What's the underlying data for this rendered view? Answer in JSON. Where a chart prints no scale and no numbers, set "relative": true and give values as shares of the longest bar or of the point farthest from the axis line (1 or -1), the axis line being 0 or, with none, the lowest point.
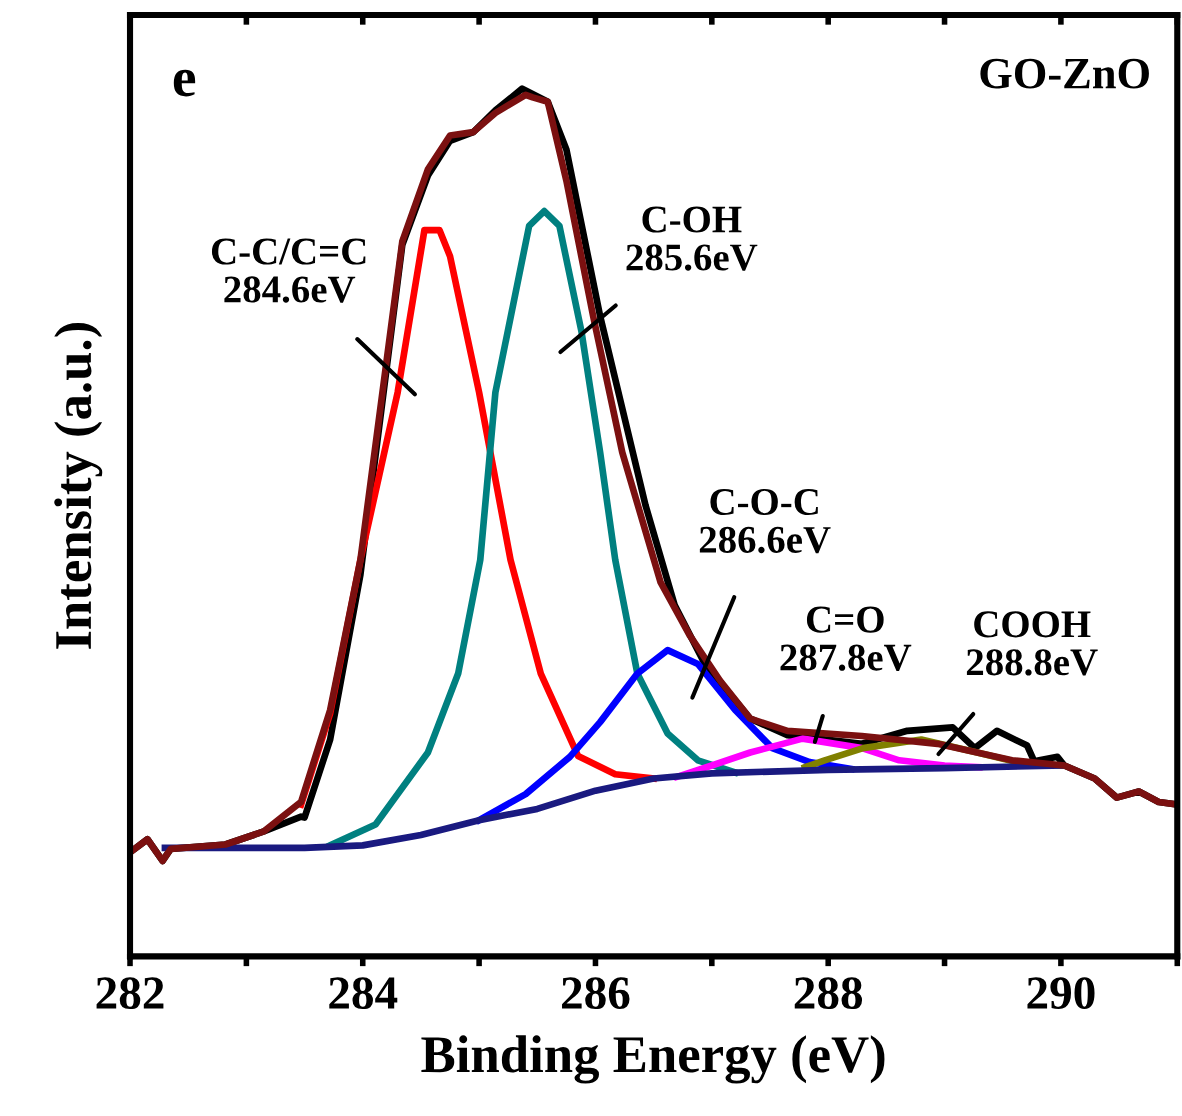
{
  "chart_data": {
    "type": "line",
    "relative": true,
    "xlabel": "Binding Energy (eV)",
    "ylabel": "Intensity (a.u.)",
    "xlim": [
      282,
      291
    ],
    "xticks": [
      282,
      {
        "value": 283,
        "label": null
      },
      284,
      {
        "value": 285,
        "label": null
      },
      286,
      {
        "value": 287,
        "label": null
      },
      288,
      {
        "value": 289,
        "label": null
      },
      290,
      {
        "value": 291,
        "label": null
      }
    ],
    "tick_labels": "x",
    "grid": false,
    "marker": "none",
    "line_style": "solid",
    "series": [
      {
        "color": "#000000",
        "x": [
          282.0,
          282.15,
          282.28,
          282.35,
          282.82,
          283.15,
          283.47,
          283.5,
          283.72,
          283.98,
          284.34,
          284.56,
          284.75,
          284.95,
          285.14,
          285.37,
          285.59,
          285.75,
          286.04,
          286.43,
          286.68,
          286.94,
          287.33,
          287.65,
          288.29,
          288.68,
          289.07,
          289.26,
          289.45,
          289.71,
          289.77,
          289.97,
          290.03,
          290.29,
          290.48,
          290.67,
          290.84,
          291.0
        ],
        "values": [
          0.12,
          0.135,
          0.11,
          0.124,
          0.129,
          0.144,
          0.161,
          0.16,
          0.25,
          0.44,
          0.82,
          0.9,
          0.94,
          0.95,
          0.975,
          1.0,
          0.985,
          0.93,
          0.738,
          0.52,
          0.405,
          0.337,
          0.274,
          0.255,
          0.245,
          0.26,
          0.264,
          0.24,
          0.26,
          0.243,
          0.225,
          0.23,
          0.22,
          0.205,
          0.183,
          0.19,
          0.178,
          0.175
        ]
      },
      {
        "color": "#ff0000",
        "x": [
          283.47,
          283.72,
          283.98,
          284.3,
          284.53,
          284.66,
          284.75,
          285.0,
          285.27,
          285.53,
          285.85,
          286.17,
          286.5
        ],
        "values": [
          0.175,
          0.28,
          0.457,
          0.65,
          0.837,
          0.837,
          0.807,
          0.65,
          0.457,
          0.326,
          0.231,
          0.21,
          0.205
        ]
      },
      {
        "color": "#008080",
        "x": [
          283.72,
          284.11,
          284.56,
          284.82,
          285.01,
          285.14,
          285.43,
          285.56,
          285.69,
          285.88,
          286.04,
          286.17,
          286.36,
          286.62,
          286.88,
          287.2
        ],
        "values": [
          0.128,
          0.152,
          0.235,
          0.326,
          0.457,
          0.65,
          0.842,
          0.859,
          0.842,
          0.72,
          0.581,
          0.457,
          0.326,
          0.257,
          0.226,
          0.212
        ]
      },
      {
        "color": "#0000ff",
        "x": [
          285.0,
          285.4,
          285.78,
          286.04,
          286.36,
          286.62,
          286.88,
          287.2,
          287.52,
          287.84,
          288.2
        ],
        "values": [
          0.157,
          0.187,
          0.23,
          0.27,
          0.326,
          0.353,
          0.337,
          0.284,
          0.24,
          0.224,
          0.216
        ]
      },
      {
        "color": "#ff00ff",
        "x": [
          286.7,
          287.0,
          287.33,
          287.78,
          288.29,
          288.61,
          289.0,
          289.3
        ],
        "values": [
          0.207,
          0.22,
          0.235,
          0.251,
          0.24,
          0.226,
          0.22,
          0.218
        ]
      },
      {
        "color": "#808000",
        "x": [
          287.8,
          287.97,
          288.3,
          288.8,
          289.28,
          289.62,
          290.0
        ],
        "values": [
          0.218,
          0.226,
          0.24,
          0.25,
          0.235,
          0.224,
          0.22
        ]
      },
      {
        "color": "#1a1a80",
        "x": [
          282.3,
          283.5,
          284.0,
          284.5,
          285.0,
          285.5,
          286.0,
          286.5,
          287.0,
          288.0,
          289.0,
          290.0
        ],
        "values": [
          0.125,
          0.125,
          0.128,
          0.14,
          0.157,
          0.17,
          0.191,
          0.205,
          0.211,
          0.215,
          0.217,
          0.22
        ]
      },
      {
        "color": "#7b1010",
        "x": [
          282.0,
          282.15,
          282.28,
          282.35,
          282.82,
          283.15,
          283.47,
          283.72,
          283.98,
          284.34,
          284.56,
          284.75,
          284.95,
          285.14,
          285.4,
          285.46,
          285.59,
          285.75,
          285.98,
          286.23,
          286.43,
          286.56,
          286.81,
          287.07,
          287.33,
          287.65,
          288.29,
          288.94,
          289.58,
          290.03,
          290.29,
          290.48,
          290.67,
          290.84,
          291.0
        ],
        "values": [
          0.12,
          0.135,
          0.11,
          0.124,
          0.129,
          0.144,
          0.178,
          0.284,
          0.457,
          0.824,
          0.907,
          0.946,
          0.95,
          0.972,
          0.993,
          0.99,
          0.985,
          0.894,
          0.738,
          0.581,
          0.49,
          0.431,
          0.37,
          0.318,
          0.274,
          0.26,
          0.254,
          0.245,
          0.226,
          0.22,
          0.205,
          0.183,
          0.19,
          0.178,
          0.175
        ]
      }
    ],
    "annotations": [
      "e",
      "GO-ZnO",
      "C-C/C=C\n284.6eV",
      "C-OH\n285.6eV",
      "C-O-C\n286.6eV",
      "C=O\n287.8eV",
      "COOH\n288.8eV"
    ]
  }
}
